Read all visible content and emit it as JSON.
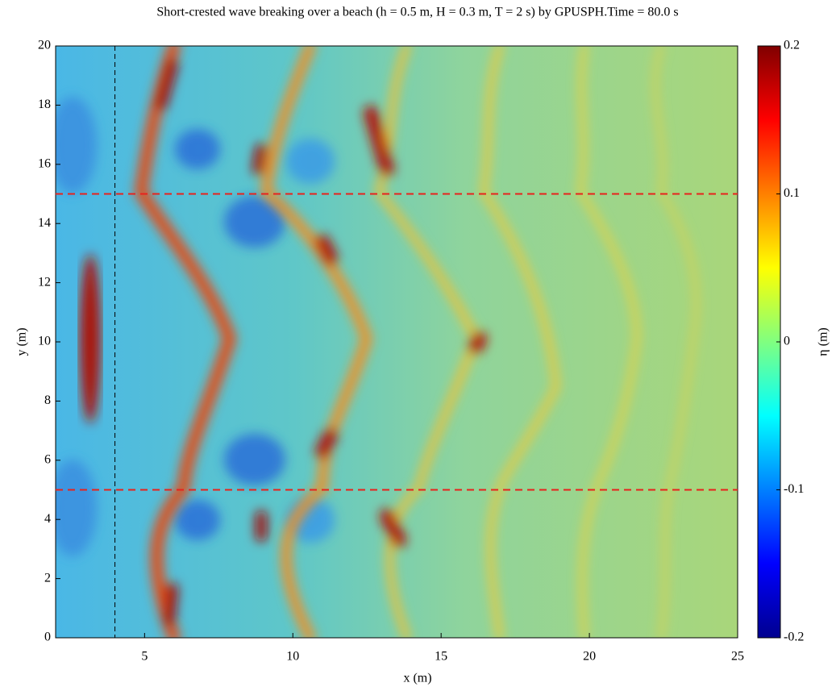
{
  "chart_data": {
    "type": "heatmap",
    "title": "Short-crested wave breaking over a beach (h = 0.5 m, H = 0.3 m, T = 2 s) by GPUSPH.Time = 80.0 s",
    "xlabel": "x (m)",
    "ylabel": "y (m)",
    "xlim": [
      2,
      25
    ],
    "xticks": [
      5,
      10,
      15,
      20,
      25
    ],
    "ylim": [
      0,
      20
    ],
    "yticks": [
      0,
      2,
      4,
      6,
      8,
      10,
      12,
      14,
      16,
      18,
      20
    ],
    "colorbar": {
      "label": "η (m)",
      "colormap": "jet",
      "clim": [
        -0.2,
        0.2
      ],
      "ticks": [
        -0.2,
        -0.1,
        0,
        0.1,
        0.2
      ]
    },
    "hlines": [
      {
        "value": 15,
        "color": "#e8221c"
      },
      {
        "value": 5,
        "color": "#e8221c"
      }
    ],
    "vlines": [
      {
        "value": 4,
        "color": "#000000"
      }
    ]
  }
}
